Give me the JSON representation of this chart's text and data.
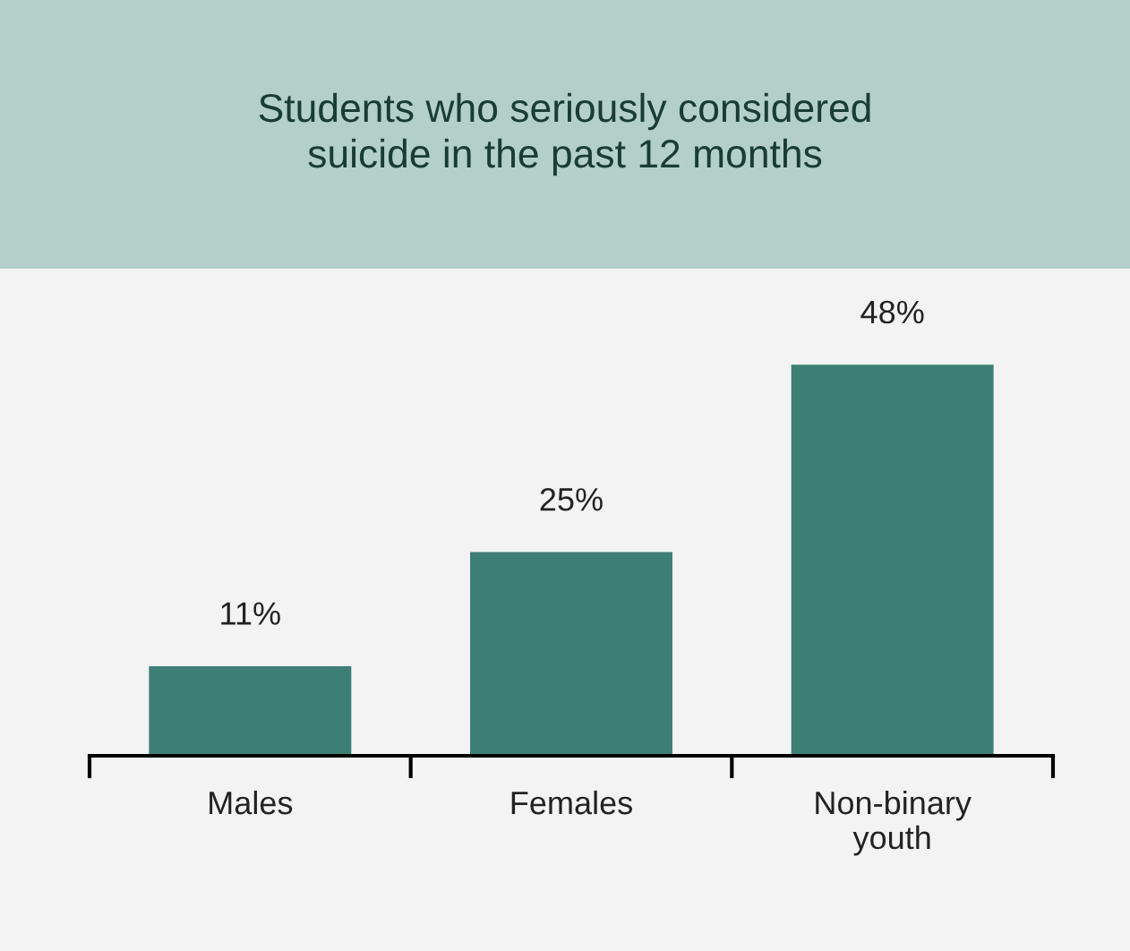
{
  "chart_data": {
    "type": "bar",
    "title": "Students who seriously considered\nsuicide in the past 12 months",
    "categories": [
      "Males",
      "Females",
      "Non-binary\nyouth"
    ],
    "values": [
      11,
      25,
      48
    ],
    "color": "#3d7f75",
    "value_labels": [
      "11%",
      "25%",
      "48%"
    ],
    "tick_labels": "x",
    "grid": false,
    "legend": false
  }
}
